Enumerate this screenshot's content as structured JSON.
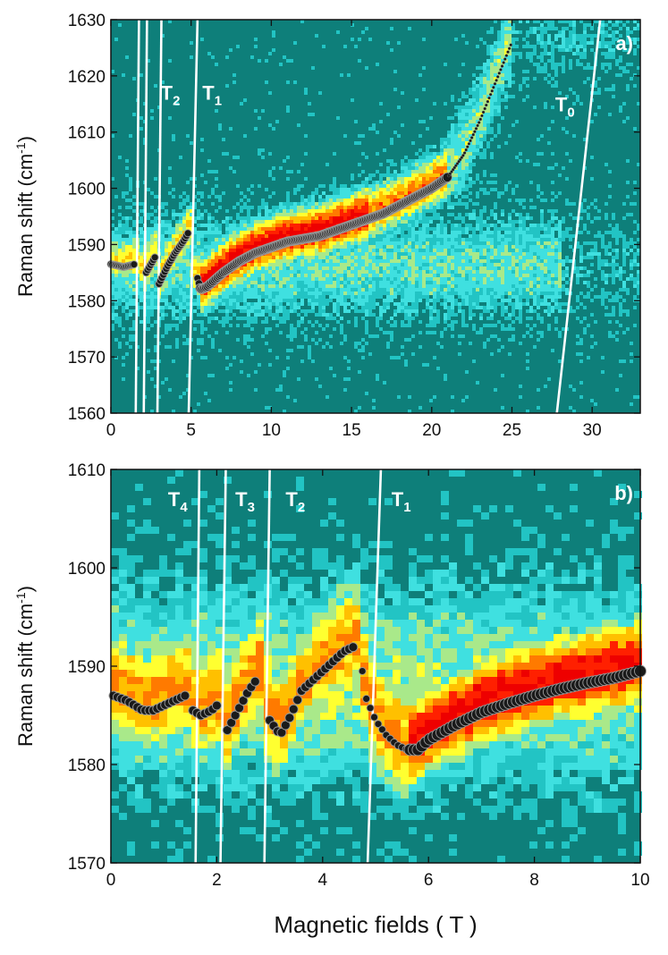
{
  "figure": {
    "xlabel": "Magnetic fields  ( T )"
  },
  "colors": {
    "background": "#0e7f7a",
    "colormap": [
      "#0e7f7a",
      "#22c4c4",
      "#3fe0e0",
      "#a9e98a",
      "#ffff30",
      "#ffc000",
      "#ff7a00",
      "#ff2000",
      "#ee0000"
    ],
    "transition_line": "#ffffff",
    "points": "#1a1a1a"
  },
  "chart_data": [
    {
      "type": "heatmap",
      "panel_label": "a)",
      "title": "",
      "xlabel": "Magnetic fields  ( T )",
      "ylabel_main": "Raman shift (cm",
      "ylabel_sup": "-1",
      "ylabel_close": ")",
      "xlim": [
        0,
        33
      ],
      "ylim": [
        1560,
        1630
      ],
      "xticks": [
        0,
        5,
        10,
        15,
        20,
        25,
        30
      ],
      "yticks": [
        1560,
        1570,
        1580,
        1590,
        1600,
        1610,
        1620,
        1630
      ],
      "grid": false,
      "transition_lines": [
        {
          "name": "",
          "x_bottom": 1.55,
          "x_top": 1.75
        },
        {
          "name": "",
          "x_bottom": 2.05,
          "x_top": 2.25
        },
        {
          "name": "T",
          "sub": "2",
          "x_bottom": 2.9,
          "x_top": 3.15,
          "label_x": 3.1,
          "label_y": 1617
        },
        {
          "name": "T",
          "sub": "1",
          "x_bottom": 4.85,
          "x_top": 5.4,
          "label_x": 5.7,
          "label_y": 1617
        },
        {
          "name": "T",
          "sub": "0",
          "x_bottom": 27.8,
          "x_top": 30.5,
          "label_x": 27.7,
          "label_y": 1615
        }
      ],
      "peak_segments": [
        {
          "x": [
            0,
            0.8,
            1.5
          ],
          "y": [
            1586.5,
            1586,
            1586.5
          ]
        },
        {
          "x": [
            2.2,
            2.6,
            2.8
          ],
          "y": [
            1585,
            1587,
            1588
          ]
        },
        {
          "x": [
            3.0,
            3.5,
            4.0,
            4.5,
            4.8
          ],
          "y": [
            1583,
            1586,
            1588.5,
            1590.5,
            1592
          ]
        },
        {
          "x": [
            5.4,
            5.6,
            6,
            7,
            8,
            9,
            10,
            11,
            12,
            13,
            14,
            15,
            16,
            17,
            18,
            19,
            20,
            21,
            22,
            23,
            24,
            25
          ],
          "y": [
            1584,
            1582,
            1582.5,
            1585,
            1587,
            1588.5,
            1589.5,
            1590.5,
            1591,
            1591.5,
            1592.5,
            1593.5,
            1594.5,
            1595.5,
            1597,
            1598.5,
            1600,
            1602,
            1606,
            1612,
            1619,
            1626
          ]
        }
      ]
    },
    {
      "type": "heatmap",
      "panel_label": "b)",
      "title": "",
      "xlabel": "Magnetic fields  ( T )",
      "ylabel_main": "Raman shift (cm",
      "ylabel_sup": "-1",
      "ylabel_close": ")",
      "xlim": [
        0,
        10
      ],
      "ylim": [
        1570,
        1610
      ],
      "xticks": [
        0,
        2,
        4,
        6,
        8,
        10
      ],
      "yticks": [
        1570,
        1580,
        1590,
        1600,
        1610
      ],
      "grid": false,
      "transition_lines": [
        {
          "name": "T",
          "sub": "4",
          "x_bottom": 1.6,
          "x_top": 1.67,
          "label_x": 1.08,
          "label_y": 1607
        },
        {
          "name": "T",
          "sub": "3",
          "x_bottom": 2.07,
          "x_top": 2.17,
          "label_x": 2.35,
          "label_y": 1607
        },
        {
          "name": "T",
          "sub": "2",
          "x_bottom": 2.9,
          "x_top": 3.0,
          "label_x": 3.3,
          "label_y": 1607
        },
        {
          "name": "T",
          "sub": "1",
          "x_bottom": 4.85,
          "x_top": 5.1,
          "label_x": 5.3,
          "label_y": 1607
        }
      ],
      "peak_segments": [
        {
          "x": [
            0.05,
            0.3,
            0.6,
            0.8,
            1.0,
            1.2,
            1.4
          ],
          "y": [
            1587,
            1586.5,
            1585.5,
            1585.5,
            1586,
            1586.5,
            1587
          ]
        },
        {
          "x": [
            1.55,
            1.7,
            1.9,
            2.0
          ],
          "y": [
            1585.5,
            1585,
            1585.5,
            1586
          ]
        },
        {
          "x": [
            2.2,
            2.4,
            2.6,
            2.8
          ],
          "y": [
            1583.5,
            1585.5,
            1587.5,
            1589
          ]
        },
        {
          "x": [
            3.0,
            3.2,
            3.4,
            3.6,
            3.8,
            4.0,
            4.2,
            4.4,
            4.6
          ],
          "y": [
            1584.5,
            1583,
            1585,
            1587.5,
            1588.5,
            1589.5,
            1590.5,
            1591.5,
            1592
          ]
        },
        {
          "x": [
            4.75,
            4.8,
            5.0,
            5.2,
            5.4,
            5.6,
            5.8,
            6.0,
            6.5,
            7,
            7.5,
            8,
            8.5,
            9,
            9.5,
            10
          ],
          "y": [
            1589.5,
            1587,
            1584.5,
            1583,
            1582,
            1581.5,
            1581.5,
            1582.5,
            1584,
            1585.3,
            1586.2,
            1587,
            1587.7,
            1588.3,
            1588.8,
            1589.5
          ]
        }
      ]
    }
  ]
}
